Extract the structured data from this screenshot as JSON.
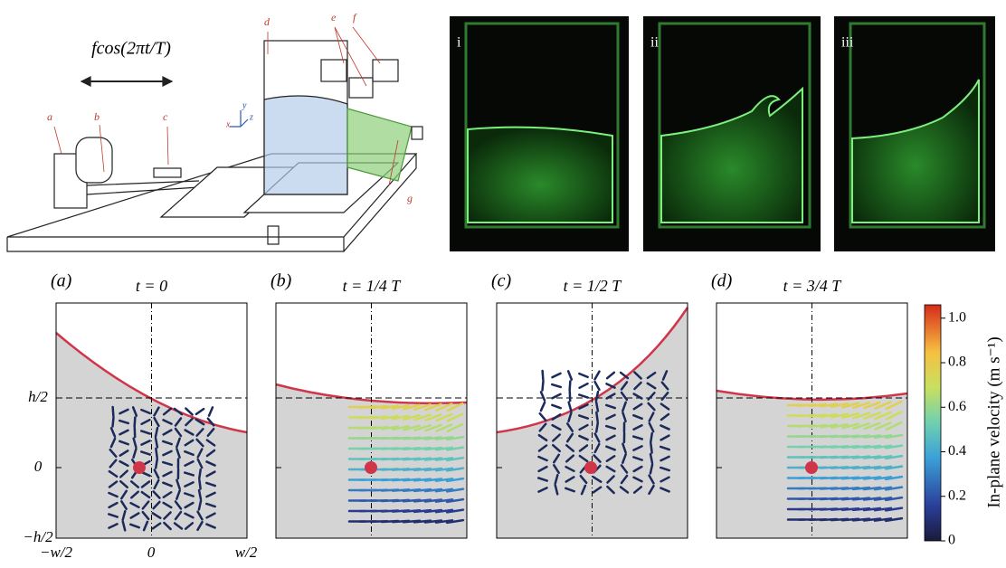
{
  "schematic": {
    "forcing": "fcos(2πt/T)",
    "parts": [
      "a",
      "b",
      "c",
      "d",
      "e",
      "f",
      "g"
    ],
    "axes": [
      "y",
      "z",
      "x"
    ]
  },
  "photos": [
    "i",
    "ii",
    "iii"
  ],
  "panels": [
    {
      "letter": "(a)",
      "time": "t = 0"
    },
    {
      "letter": "(b)",
      "time": "t = 1/4 T"
    },
    {
      "letter": "(c)",
      "time": "t = 1/2 T"
    },
    {
      "letter": "(d)",
      "time": "t = 3/4 T"
    }
  ],
  "axis_labels": {
    "y": [
      "h/2",
      "0",
      "−h/2"
    ],
    "x": [
      "−w/2",
      "0",
      "w/2"
    ]
  },
  "colorbar": {
    "label": "In-plane velocity (m s⁻¹)",
    "lim": [
      0,
      1.06
    ],
    "ticks": [
      {
        "value": 1,
        "label": "1.0"
      },
      0.8,
      0.6,
      0.4,
      0.2,
      0
    ]
  }
}
